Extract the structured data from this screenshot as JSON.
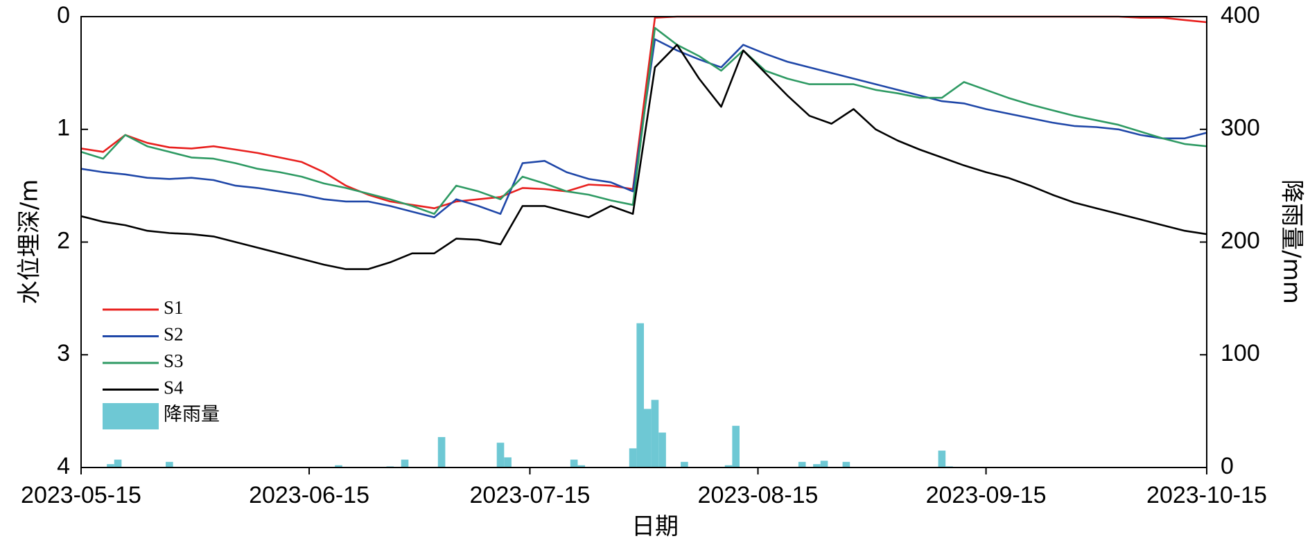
{
  "chart_data": {
    "type": "line",
    "x_label": "日期",
    "y_label": "水位埋深/m",
    "y2_label": "降雨量/mm",
    "x": [
      "2023-05-15",
      "2023-05-18",
      "2023-05-21",
      "2023-05-24",
      "2023-05-27",
      "2023-05-30",
      "2023-06-02",
      "2023-06-05",
      "2023-06-08",
      "2023-06-11",
      "2023-06-14",
      "2023-06-17",
      "2023-06-20",
      "2023-06-23",
      "2023-06-26",
      "2023-06-29",
      "2023-07-02",
      "2023-07-05",
      "2023-07-08",
      "2023-07-11",
      "2023-07-14",
      "2023-07-17",
      "2023-07-20",
      "2023-07-23",
      "2023-07-26",
      "2023-07-29",
      "2023-08-01",
      "2023-08-04",
      "2023-08-07",
      "2023-08-10",
      "2023-08-13",
      "2023-08-16",
      "2023-08-19",
      "2023-08-22",
      "2023-08-25",
      "2023-08-28",
      "2023-08-31",
      "2023-09-03",
      "2023-09-06",
      "2023-09-09",
      "2023-09-12",
      "2023-09-15",
      "2023-09-18",
      "2023-09-21",
      "2023-09-24",
      "2023-09-27",
      "2023-09-30",
      "2023-10-03",
      "2023-10-06",
      "2023-10-09",
      "2023-10-12",
      "2023-10-15"
    ],
    "xlim": [
      "2023-05-15",
      "2023-10-15"
    ],
    "xticks": [
      "2023-05-15",
      "2023-06-15",
      "2023-07-15",
      "2023-08-15",
      "2023-09-15",
      "2023-10-15"
    ],
    "ylim": [
      0,
      4
    ],
    "y_inverted": true,
    "yticks": [
      0,
      1,
      2,
      3,
      4
    ],
    "y2lim": [
      0,
      400
    ],
    "y2ticks": [
      0,
      100,
      200,
      300,
      400
    ],
    "legend": "center left",
    "series": [
      {
        "name": "S1",
        "color": "#e8201e",
        "values": [
          1.17,
          1.2,
          1.05,
          1.12,
          1.16,
          1.17,
          1.15,
          1.18,
          1.21,
          1.25,
          1.29,
          1.38,
          1.5,
          1.58,
          1.64,
          1.67,
          1.7,
          1.64,
          1.62,
          1.6,
          1.52,
          1.53,
          1.55,
          1.49,
          1.5,
          1.53,
          0.01,
          0,
          0,
          0,
          0,
          0,
          0,
          0,
          0,
          0,
          0,
          0,
          0,
          0,
          0,
          0,
          0,
          0,
          0,
          0,
          0,
          0,
          0.01,
          0.01,
          0.03,
          0.05
        ]
      },
      {
        "name": "S2",
        "color": "#1f47a8",
        "values": [
          1.35,
          1.38,
          1.4,
          1.43,
          1.44,
          1.43,
          1.45,
          1.5,
          1.52,
          1.55,
          1.58,
          1.62,
          1.64,
          1.64,
          1.68,
          1.73,
          1.78,
          1.62,
          1.68,
          1.75,
          1.3,
          1.28,
          1.38,
          1.44,
          1.47,
          1.55,
          0.2,
          0.3,
          0.38,
          0.45,
          0.25,
          0.33,
          0.4,
          0.45,
          0.5,
          0.55,
          0.6,
          0.65,
          0.7,
          0.75,
          0.77,
          0.82,
          0.86,
          0.9,
          0.94,
          0.97,
          0.98,
          1.0,
          1.05,
          1.08,
          1.08,
          1.03
        ]
      },
      {
        "name": "S3",
        "color": "#2e9a63",
        "values": [
          1.2,
          1.26,
          1.05,
          1.15,
          1.2,
          1.25,
          1.26,
          1.3,
          1.35,
          1.38,
          1.42,
          1.48,
          1.52,
          1.57,
          1.62,
          1.68,
          1.75,
          1.5,
          1.55,
          1.62,
          1.42,
          1.48,
          1.55,
          1.58,
          1.63,
          1.67,
          0.1,
          0.25,
          0.35,
          0.48,
          0.3,
          0.48,
          0.55,
          0.6,
          0.6,
          0.6,
          0.65,
          0.68,
          0.72,
          0.72,
          0.58,
          0.65,
          0.72,
          0.78,
          0.83,
          0.88,
          0.92,
          0.96,
          1.02,
          1.08,
          1.13,
          1.15
        ]
      },
      {
        "name": "S4",
        "color": "#000000",
        "values": [
          1.77,
          1.82,
          1.85,
          1.9,
          1.92,
          1.93,
          1.95,
          2.0,
          2.05,
          2.1,
          2.15,
          2.2,
          2.24,
          2.24,
          2.18,
          2.1,
          2.1,
          1.97,
          1.98,
          2.02,
          1.68,
          1.68,
          1.73,
          1.78,
          1.68,
          1.75,
          0.45,
          0.25,
          0.55,
          0.8,
          0.3,
          0.5,
          0.7,
          0.88,
          0.95,
          0.82,
          1.0,
          1.1,
          1.18,
          1.25,
          1.32,
          1.38,
          1.43,
          1.5,
          1.58,
          1.65,
          1.7,
          1.75,
          1.8,
          1.85,
          1.9,
          1.93
        ]
      },
      {
        "name": "降雨量",
        "type": "bar",
        "axis": "y2",
        "color": "#6ec8d4",
        "x": [
          "2023-05-19",
          "2023-05-20",
          "2023-05-27",
          "2023-06-19",
          "2023-06-26",
          "2023-06-28",
          "2023-07-03",
          "2023-07-11",
          "2023-07-12",
          "2023-07-21",
          "2023-07-22",
          "2023-07-29",
          "2023-07-30",
          "2023-07-31",
          "2023-08-01",
          "2023-08-02",
          "2023-08-05",
          "2023-08-11",
          "2023-08-12",
          "2023-08-21",
          "2023-08-23",
          "2023-08-24",
          "2023-08-27",
          "2023-09-09",
          "2023-09-10"
        ],
        "values": [
          3,
          7,
          5,
          2,
          1,
          7,
          27,
          22,
          9,
          7,
          2,
          17,
          128,
          52,
          60,
          31,
          5,
          2,
          37,
          5,
          3,
          6,
          5,
          15,
          1
        ]
      }
    ]
  }
}
